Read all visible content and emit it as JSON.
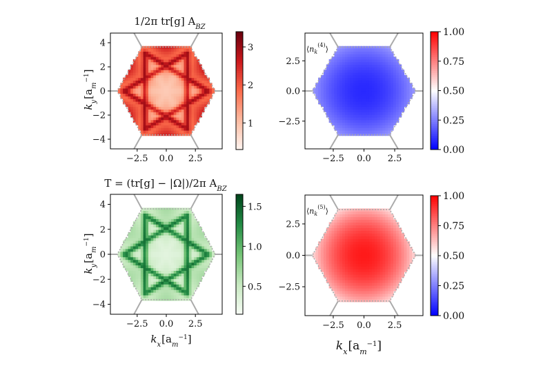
{
  "colors": {
    "reds": [
      "#fff5f0",
      "#fcbba1",
      "#fb6a4a",
      "#cb181d",
      "#67000d"
    ],
    "greens": [
      "#f7fcf5",
      "#c7e9c0",
      "#74c476",
      "#238b45",
      "#00441b"
    ],
    "bwr": [
      "#0000ff",
      "#ffffff",
      "#ff0000"
    ],
    "bz_outline": "#aaaaaa",
    "axis": "#000000"
  },
  "chart_data": [
    {
      "type": "heatmap",
      "panel": "top-left",
      "title_pre": "1/2π tr[g] A",
      "title_sub": "BZ",
      "xlabel": "",
      "ylabel": "k",
      "ylabel_sub": "y",
      "ylabel_unit": "[a",
      "ylabel_unit_sub": "m",
      "ylabel_unit_sup": "−1",
      "ylabel_close": "]",
      "xlim": [
        -4.8,
        4.8
      ],
      "ylim": [
        -4.8,
        4.8
      ],
      "xticks": [
        -2.5,
        0.0,
        2.5
      ],
      "xtick_labels": [
        "−2.5",
        "0.0",
        "2.5"
      ],
      "yticks": [
        4,
        2,
        0,
        -2,
        -4
      ],
      "ytick_labels": [
        "4",
        "2",
        "0",
        "−2",
        "−4"
      ],
      "colormap": "Reds",
      "clim": [
        0.3,
        3.4
      ],
      "colorbar_ticks": [
        1,
        2,
        3
      ],
      "colorbar_tick_labels": [
        "1",
        "2",
        "3"
      ],
      "field": "lines"
    },
    {
      "type": "heatmap",
      "panel": "top-right",
      "inset_label": "⟨n_k^(4)⟩",
      "xlim": [
        -4.8,
        4.8
      ],
      "ylim": [
        -4.8,
        4.8
      ],
      "xticks": [
        -2.5,
        0.0,
        2.5
      ],
      "xtick_labels": [
        "−2.5",
        "0.0",
        "2.5"
      ],
      "yticks": [
        2.5,
        0.0,
        -2.5
      ],
      "ytick_labels": [
        "2.5",
        "0.0",
        "−2.5"
      ],
      "colormap": "bwr",
      "clim": [
        0.0,
        1.0
      ],
      "colorbar_ticks": [
        0.0,
        0.25,
        0.5,
        0.75,
        1.0
      ],
      "colorbar_tick_labels": [
        "0.00",
        "0.25",
        "0.50",
        "0.75",
        "1.00"
      ],
      "field": "occupation_low"
    },
    {
      "type": "heatmap",
      "panel": "bottom-left",
      "title_pre": "T = (tr[g] − |Ω|)/2π A",
      "title_sub": "BZ",
      "xlabel": "k",
      "xlabel_sub": "x",
      "xlabel_unit": "[a",
      "xlabel_unit_sub": "m",
      "xlabel_unit_sup": "−1",
      "xlabel_close": "]",
      "ylabel": "k",
      "ylabel_sub": "y",
      "ylabel_unit": "[a",
      "ylabel_unit_sub": "m",
      "ylabel_unit_sup": "−1",
      "ylabel_close": "]",
      "xlim": [
        -4.8,
        4.8
      ],
      "ylim": [
        -4.8,
        4.8
      ],
      "xticks": [
        -2.5,
        0.0,
        2.5
      ],
      "xtick_labels": [
        "−2.5",
        "0.0",
        "2.5"
      ],
      "yticks": [
        4,
        2,
        0,
        -2,
        -4
      ],
      "ytick_labels": [
        "4",
        "2",
        "0",
        "−2",
        "−4"
      ],
      "colormap": "Greens",
      "clim": [
        0.15,
        1.65
      ],
      "colorbar_ticks": [
        0.5,
        1.0,
        1.5
      ],
      "colorbar_tick_labels": [
        "0.5",
        "1.0",
        "1.5"
      ],
      "field": "lines_green"
    },
    {
      "type": "heatmap",
      "panel": "bottom-right",
      "inset_label": "⟨n_k^(5)⟩",
      "xlabel": "k",
      "xlabel_sub": "x",
      "xlabel_unit": "[a",
      "xlabel_unit_sub": "m",
      "xlabel_unit_sup": "−1",
      "xlabel_close": "]",
      "xlim": [
        -4.8,
        4.8
      ],
      "ylim": [
        -4.8,
        4.8
      ],
      "xticks": [
        -2.5,
        0.0,
        2.5
      ],
      "xtick_labels": [
        "−2.5",
        "0.0",
        "2.5"
      ],
      "yticks": [
        2.5,
        0.0,
        -2.5
      ],
      "ytick_labels": [
        "2.5",
        "0.0",
        "−2.5"
      ],
      "colormap": "bwr",
      "clim": [
        0.0,
        1.0
      ],
      "colorbar_ticks": [
        0.0,
        0.25,
        0.5,
        0.75,
        1.0
      ],
      "colorbar_tick_labels": [
        "0.00",
        "0.25",
        "0.50",
        "0.75",
        "1.00"
      ],
      "field": "occupation_high"
    }
  ]
}
